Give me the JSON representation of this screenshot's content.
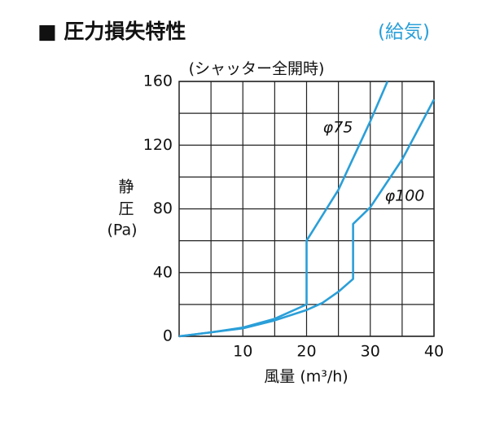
{
  "chart_data": {
    "type": "line",
    "title": "■ 圧力損失特性",
    "subtitle": "(給気)",
    "annotation": "(シャッター全開時)",
    "ylabel": [
      "静",
      "圧",
      "(Pa)"
    ],
    "xlabel": "風量 (m³/h)",
    "xlim": [
      0,
      40
    ],
    "xticks": [
      10,
      20,
      30,
      40
    ],
    "ylim": [
      0,
      160
    ],
    "yticks": [
      0,
      40,
      80,
      120,
      160
    ],
    "grid": true,
    "series": [
      {
        "name": "φ75",
        "color": "#2a9fd8",
        "x": [
          0,
          5,
          10,
          15,
          20,
          20,
          25,
          30,
          32.7
        ],
        "values": [
          0,
          2.5,
          5.5,
          11,
          20,
          60,
          92,
          135,
          160
        ]
      },
      {
        "name": "φ100",
        "color": "#2a9fd8",
        "x": [
          0,
          10,
          15,
          20,
          22.5,
          25,
          27.3,
          27.3,
          30,
          35,
          40
        ],
        "values": [
          0,
          5,
          10,
          16.5,
          21,
          28,
          36,
          70.5,
          81,
          111,
          148.7
        ]
      }
    ]
  }
}
